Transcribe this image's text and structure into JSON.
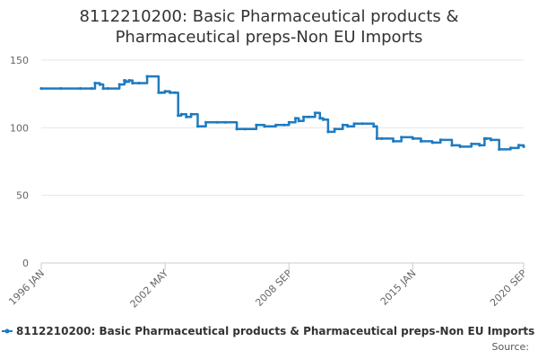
{
  "chart_data": {
    "type": "line",
    "title_lines": [
      "8112210200: Basic Pharmaceutical products &",
      "Pharmaceutical preps-Non EU Imports"
    ],
    "xlabel": "",
    "ylabel": "",
    "ylim": [
      0,
      150
    ],
    "yticks": [
      "0",
      "50",
      "100",
      "150"
    ],
    "x_tick_labels": [
      "1996 JAN",
      "2002 MAY",
      "2008 SEP",
      "2015 JAN",
      "2020 SEP"
    ],
    "grid": "horizontal",
    "legend_position": "bottom",
    "series": [
      {
        "name": "8112210200: Basic Pharmaceutical products & Pharmaceutical preps-Non EU Imports",
        "color": "#1f7bc1",
        "x": [
          "1996-01",
          "1997-01",
          "1998-01",
          "1998-08",
          "1998-10",
          "1999-01",
          "1999-03",
          "1999-06",
          "2000-01",
          "2000-04",
          "2000-05",
          "2000-07",
          "2000-09",
          "2001-01",
          "2001-06",
          "2002-01",
          "2002-03",
          "2002-05",
          "2002-08",
          "2002-11",
          "2003-01",
          "2003-03",
          "2003-06",
          "2003-09",
          "2004-01",
          "2004-06",
          "2005-01",
          "2005-06",
          "2006-01",
          "2006-06",
          "2007-01",
          "2007-06",
          "2008-01",
          "2008-06",
          "2008-09",
          "2009-01",
          "2009-03",
          "2009-06",
          "2009-09",
          "2010-01",
          "2010-04",
          "2010-06",
          "2010-09",
          "2011-01",
          "2011-06",
          "2011-09",
          "2012-01",
          "2012-06",
          "2013-01",
          "2013-03",
          "2013-06",
          "2014-01",
          "2014-06",
          "2015-01",
          "2015-06",
          "2016-01",
          "2016-06",
          "2017-01",
          "2017-06",
          "2018-01",
          "2018-06",
          "2018-09",
          "2018-10",
          "2019-01",
          "2019-06",
          "2020-01",
          "2020-06",
          "2020-09"
        ],
        "values": [
          129,
          129,
          129,
          129,
          133,
          132,
          129,
          129,
          132,
          135,
          134,
          135,
          133,
          133,
          138,
          126,
          126,
          127,
          126,
          126,
          109,
          110,
          108,
          110,
          101,
          104,
          104,
          104,
          99,
          99,
          102,
          101,
          102,
          102,
          104,
          107,
          105,
          108,
          108,
          111,
          107,
          106,
          97,
          99,
          102,
          101,
          103,
          103,
          101,
          92,
          92,
          90,
          93,
          92,
          90,
          89,
          91,
          87,
          86,
          88,
          87,
          92,
          92,
          91,
          84,
          85,
          87,
          86
        ]
      }
    ]
  },
  "footer": {
    "source_label": "Source:"
  }
}
